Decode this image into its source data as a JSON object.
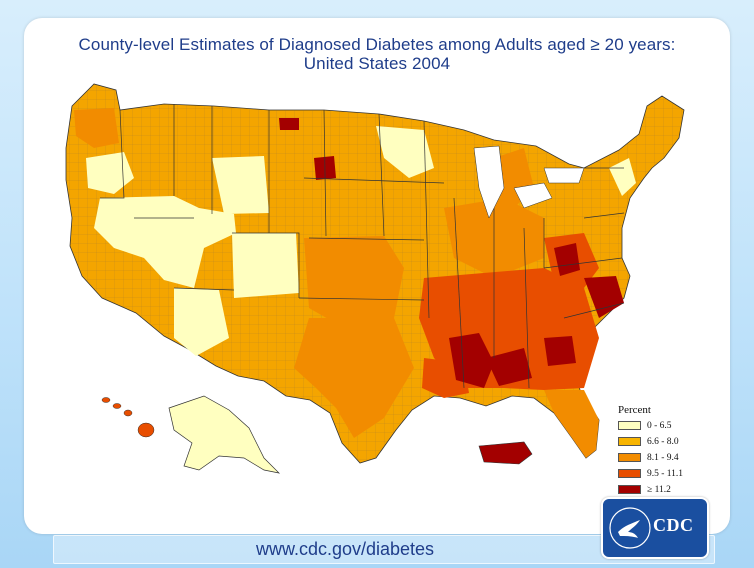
{
  "title": {
    "line1": "County-level Estimates of Diagnosed Diabetes among Adults aged ≥ 20 years:",
    "line2": "United States 2004"
  },
  "legend": {
    "title": "Percent",
    "items": [
      {
        "label": "0 - 6.5",
        "color": "#ffffc0"
      },
      {
        "label": "6.6 - 8.0",
        "color": "#f7b400"
      },
      {
        "label": "8.1 - 9.4",
        "color": "#f28c00"
      },
      {
        "label": "9.5 - 11.1",
        "color": "#e84e00"
      },
      {
        "label": "≥ 11.2",
        "color": "#a30000"
      }
    ]
  },
  "footer": {
    "url": "www.cdc.gov/diabetes"
  },
  "logo": {
    "text": "CDC"
  },
  "colors": {
    "title_text": "#1f3d8a",
    "logo_bg": "#1a4fa0",
    "county_border": "#7a7a7a",
    "state_border": "#333333"
  }
}
